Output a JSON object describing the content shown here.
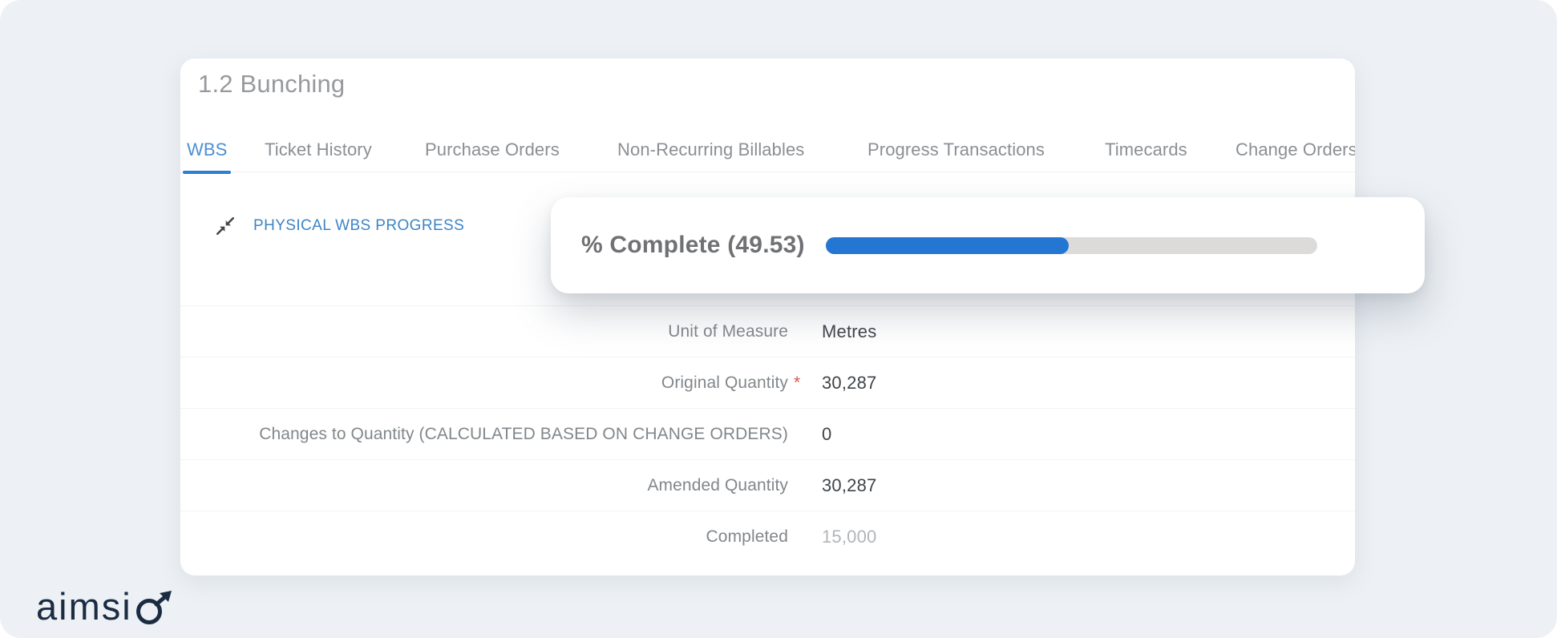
{
  "page": {
    "title": "1.2 Bunching"
  },
  "tabs": {
    "items": [
      {
        "label": "WBS",
        "active": true
      },
      {
        "label": "Ticket History",
        "active": false
      },
      {
        "label": "Purchase Orders",
        "active": false
      },
      {
        "label": "Non-Recurring Billables",
        "active": false
      },
      {
        "label": "Progress Transactions",
        "active": false
      },
      {
        "label": "Timecards",
        "active": false
      },
      {
        "label": "Change Orders",
        "active": false
      }
    ]
  },
  "physical_wbs": {
    "section_title": "PHYSICAL WBS PROGRESS",
    "percent_complete_label": "% Complete (49.53)",
    "percent_complete": 49.53,
    "fields": [
      {
        "label": "Unit of Measure",
        "required": "",
        "value": "Metres"
      },
      {
        "label": "Original Quantity",
        "required": "*",
        "value": "30,287"
      },
      {
        "label": "Changes to Quantity (CALCULATED BASED ON CHANGE ORDERS)",
        "required": "",
        "value": "0"
      },
      {
        "label": "Amended Quantity",
        "required": "",
        "value": "30,287"
      },
      {
        "label": "Completed",
        "required": "",
        "value": "15,000"
      }
    ]
  },
  "branding": {
    "logo_text": "aimsio",
    "logo_prefix": "aimsi"
  },
  "colors": {
    "canvas_background": "#edf1f5",
    "accent_blue": "#2377d3",
    "tab_active_blue": "#4a90d2",
    "section_blue": "#3e84c6",
    "progress_track": "#dcdbd9",
    "required_red": "#d9534f",
    "logo_navy": "#1b2c42"
  }
}
